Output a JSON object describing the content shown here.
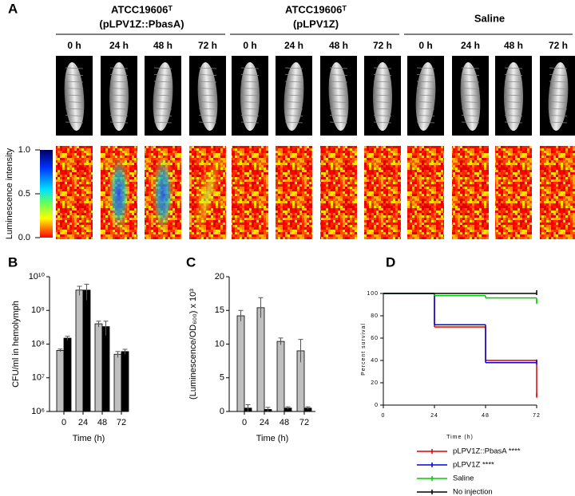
{
  "panel_a": {
    "label": "A",
    "groups": [
      {
        "title": "ATCC19606ᵀ",
        "subtitle": "(pLPV1Z::PbasA)",
        "times": [
          "0 h",
          "24 h",
          "48 h",
          "72 h"
        ]
      },
      {
        "title": "ATCC19606ᵀ",
        "subtitle": "(pLPV1Z)",
        "times": [
          "0 h",
          "24 h",
          "48 h",
          "72 h"
        ]
      },
      {
        "title": "Saline",
        "times": [
          "0 h",
          "24 h",
          "48 h",
          "72 h"
        ]
      }
    ],
    "colorbar": {
      "label": "Luminescence intensity",
      "lim": [
        0,
        1
      ],
      "ticks": [
        {
          "value": 1,
          "label": "1.0"
        },
        0.5,
        {
          "value": 0,
          "label": "0.0"
        }
      ]
    }
  },
  "chart_data": [
    {
      "label": "B",
      "type": "bar",
      "categories": [
        "0",
        "24",
        "48",
        "72"
      ],
      "xlabel": "Time (h)",
      "ylabel": "CFU/ml in hemolymph",
      "log_scale": true,
      "ylim": [
        1000000,
        10000000000
      ],
      "yticks": [
        {
          "value": 1000000,
          "label": "10⁶"
        },
        {
          "value": 10000000,
          "label": "10⁷"
        },
        {
          "value": 100000000,
          "label": "10⁸"
        },
        {
          "value": 1000000000,
          "label": "10⁹"
        },
        {
          "value": 10000000000,
          "label": "10¹⁰"
        }
      ],
      "series": [
        {
          "color": "#bfbfbf",
          "values": [
            65000000,
            4000000000,
            400000000,
            50000000
          ],
          "errors": [
            6000000,
            1200000000,
            80000000,
            10000000
          ]
        },
        {
          "color": "#000000",
          "values": [
            150000000,
            4000000000,
            330000000,
            60000000
          ],
          "errors": [
            20000000,
            2000000000,
            150000000,
            10000000
          ]
        }
      ]
    },
    {
      "label": "C",
      "type": "bar",
      "categories": [
        "0",
        "24",
        "48",
        "72"
      ],
      "xlabel": "Time (h)",
      "ylabel": "(Luminescence/OD₆₀₀) x 10³",
      "ylim": [
        0,
        20
      ],
      "yticks": [
        0,
        5,
        10,
        15,
        20
      ],
      "series": [
        {
          "color": "#bfbfbf",
          "values": [
            14.2,
            15.4,
            10.4,
            9
          ],
          "errors": [
            0.8,
            1.5,
            0.5,
            1.7
          ]
        },
        {
          "color": "#000000",
          "values": [
            0.5,
            0.3,
            0.5,
            0.5
          ],
          "errors": [
            0.5,
            0.3,
            0.2,
            0.2
          ]
        }
      ]
    },
    {
      "label": "D",
      "type": "step",
      "x": [
        0,
        24,
        48,
        72
      ],
      "xlim": [
        0,
        72
      ],
      "xticks": [
        0,
        24,
        48,
        72
      ],
      "ylim": [
        0,
        100
      ],
      "yticks": [
        0,
        20,
        40,
        60,
        80,
        100
      ],
      "xlabel": "Time (h)",
      "ylabel": "Percent survival",
      "series": [
        {
          "name": "pLPV1Z::PbasA ****",
          "color": "#e00000",
          "values": [
            100,
            70,
            40,
            8
          ]
        },
        {
          "name": "pLPV1Z ****",
          "color": "#0000e0",
          "values": [
            100,
            72,
            38,
            38
          ]
        },
        {
          "name": "Saline",
          "color": "#00cc00",
          "values": [
            100,
            98,
            96,
            92
          ]
        },
        {
          "name": "No injection",
          "color": "#000000",
          "values": [
            100,
            100,
            100,
            100
          ]
        }
      ]
    }
  ]
}
